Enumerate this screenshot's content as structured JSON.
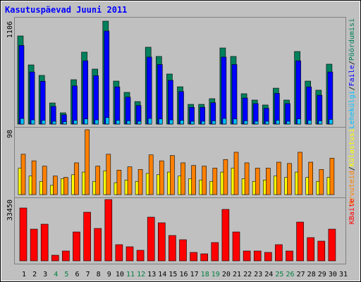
{
  "chart_data": {
    "type": "bar",
    "title": "Kasutuspäevad Juuni 2011",
    "categories": [
      "1",
      "2",
      "3",
      "4",
      "5",
      "6",
      "7",
      "8",
      "9",
      "10",
      "11",
      "12",
      "13",
      "14",
      "15",
      "16",
      "17",
      "18",
      "19",
      "20",
      "21",
      "22",
      "23",
      "24",
      "25",
      "26",
      "27",
      "28",
      "29",
      "30",
      "31"
    ],
    "category_color": "#000000",
    "highlight_color": "#008040",
    "highlighted": [
      3,
      4,
      10,
      11,
      17,
      18,
      24,
      25
    ],
    "legend_separator": "/",
    "grid": false,
    "panels": [
      {
        "ylim": [
          0,
          1106
        ],
        "yticks": [
          1106
        ],
        "legend_order": [
          2,
          1,
          0
        ],
        "series": [
          {
            "name": "Pöördumisi",
            "color": "#00805C",
            "values": [
              947,
              636,
              523,
              227,
              121,
              477,
              773,
              591,
              1106,
              462,
              341,
              242,
              826,
              727,
              538,
              401,
              212,
              212,
              273,
              818,
              727,
              326,
              258,
              205,
              386,
              258,
              780,
              462,
              364,
              644,
              null
            ]
          },
          {
            "name": "Faile",
            "color": "#0000FF",
            "values": [
              845,
              560,
              460,
              190,
              100,
              410,
              680,
              520,
              1000,
              400,
              290,
              200,
              720,
              640,
              470,
              350,
              180,
              180,
              230,
              720,
              640,
              280,
              220,
              170,
              330,
              220,
              680,
              400,
              310,
              560,
              null
            ]
          },
          {
            "name": "Lehekülgi",
            "color": "#00C0FF",
            "values": [
              60,
              45,
              40,
              30,
              25,
              40,
              55,
              45,
              70,
              40,
              35,
              30,
              60,
              55,
              45,
              40,
              30,
              30,
              35,
              60,
              55,
              35,
              30,
              30,
              40,
              30,
              55,
              40,
              35,
              50,
              null
            ]
          }
        ]
      },
      {
        "ylim": [
          0,
          98
        ],
        "yticks": [
          98
        ],
        "legend_order": [
          1,
          0
        ],
        "series": [
          {
            "name": "Külastusi",
            "color": "#FFFF00",
            "values": [
              40,
              28,
              20,
              14,
              24,
              30,
              34,
              20,
              36,
              18,
              22,
              20,
              32,
              30,
              34,
              28,
              24,
              22,
              20,
              34,
              40,
              24,
              20,
              22,
              28,
              26,
              34,
              26,
              20,
              26,
              null
            ]
          },
          {
            "name": "Arvuteid",
            "color": "#FF8000",
            "values": [
              61,
              51,
              43,
              28,
              26,
              48,
              98,
              43,
              61,
              37,
              42,
              38,
              60,
              51,
              59,
              48,
              44,
              43,
              40,
              53,
              64,
              48,
              40,
              40,
              49,
              47,
              64,
              49,
              38,
              55,
              null
            ]
          }
        ]
      },
      {
        "ylim": [
          0,
          33450
        ],
        "yticks": [
          33450
        ],
        "legend_order": [
          0
        ],
        "series": [
          {
            "name": "KBaite",
            "color": "#FF0000",
            "values": [
              28836,
              17300,
              20000,
              3076,
              5383,
              15764,
              26530,
              17686,
              33450,
              8843,
              7690,
              5767,
              23838,
              20762,
              13841,
              11534,
              4614,
              3845,
              9997,
              28067,
              15764,
              5383,
              5383,
              4614,
              8843,
              5383,
              21147,
              12688,
              10766,
              17300,
              null
            ]
          }
        ]
      }
    ]
  }
}
